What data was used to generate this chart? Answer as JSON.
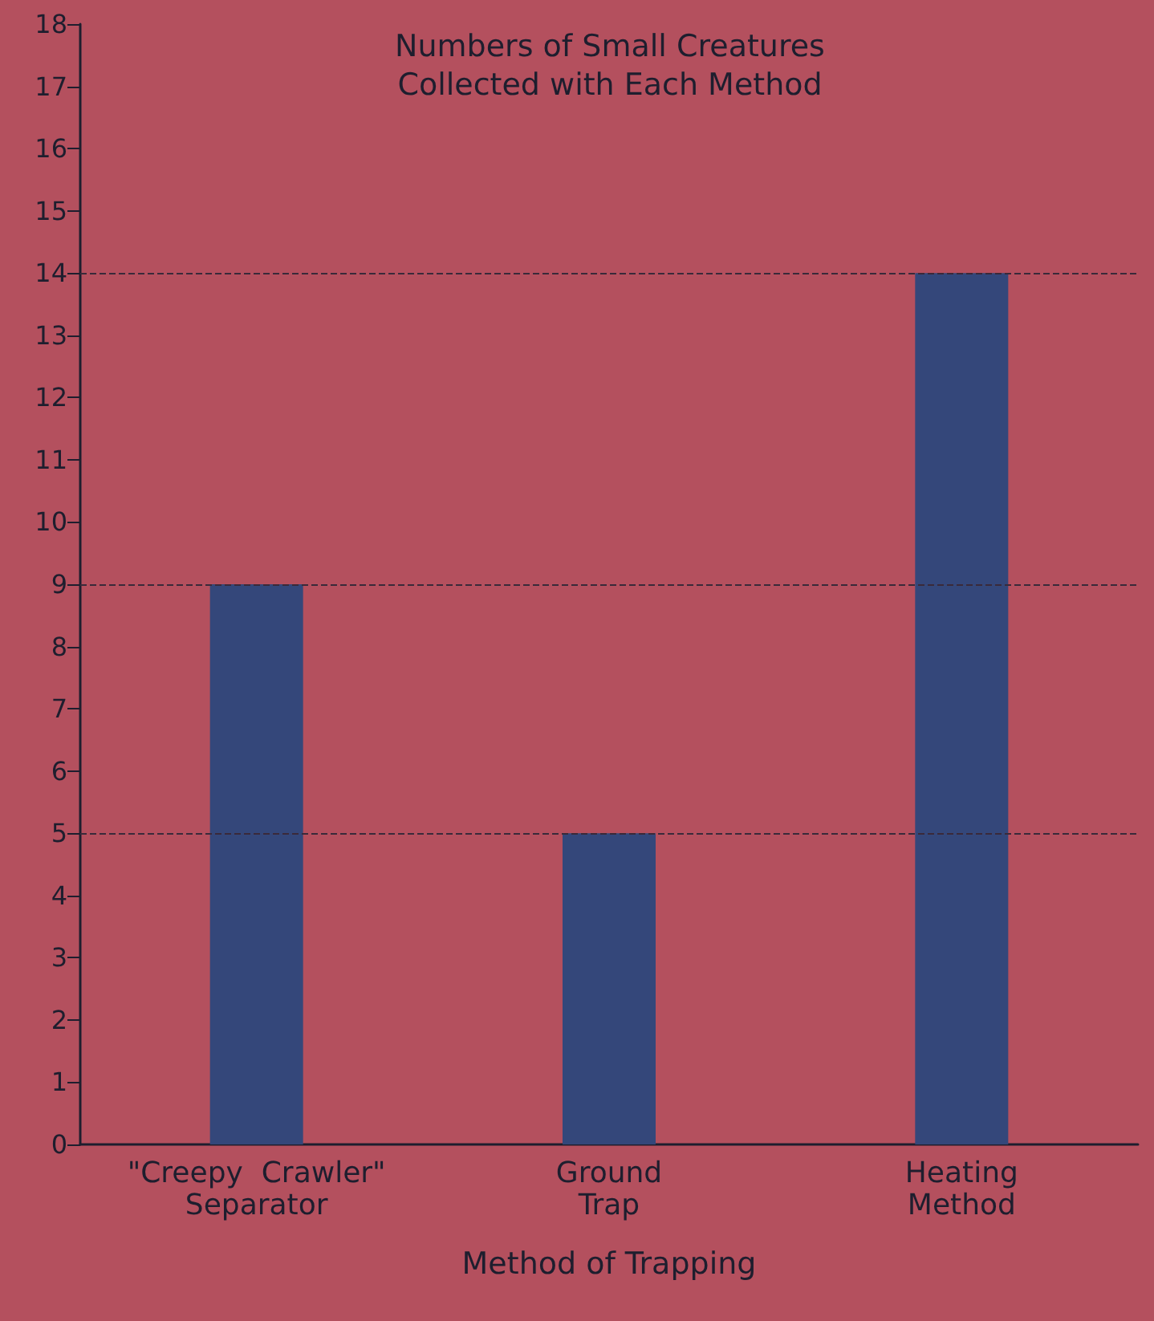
{
  "chart_data": {
    "type": "bar",
    "title": "Numbers of Small Creatures\nCollected with Each Method",
    "xlabel": "Method of Trapping",
    "categories": [
      "\"Creepy  Crawler\"\nSeparator",
      "Ground\nTrap",
      "Heating\nMethod"
    ],
    "values": [
      9,
      5,
      14
    ],
    "color": "#34477a",
    "ylim": [
      0,
      18
    ],
    "yticks": [
      0,
      1,
      2,
      3,
      4,
      5,
      6,
      7,
      8,
      9,
      10,
      11,
      12,
      13,
      14,
      15,
      16,
      17,
      18
    ],
    "grid": false,
    "ref_lines": [
      {
        "axis": "y",
        "value": 14,
        "line_style": "dashed",
        "color": "#3a2a3a"
      },
      {
        "axis": "y",
        "value": 9,
        "line_style": "dashed",
        "color": "#3a2a3a"
      },
      {
        "axis": "y",
        "value": 5,
        "line_style": "dashed",
        "color": "#3a2a3a"
      }
    ]
  }
}
